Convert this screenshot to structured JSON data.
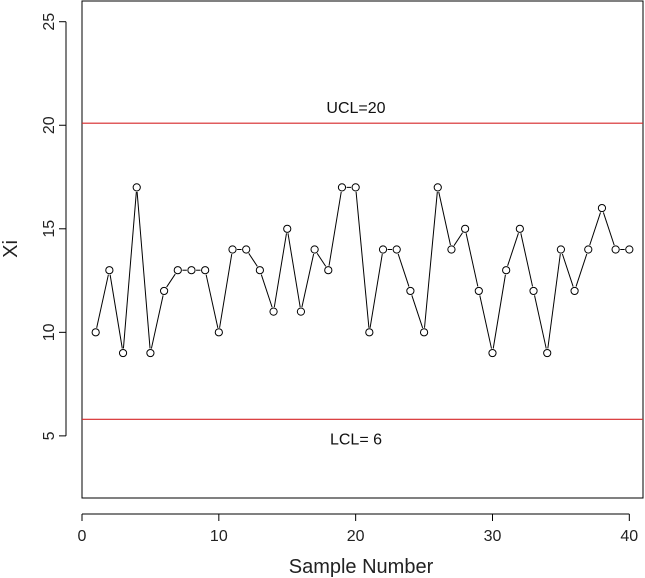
{
  "chart_data": {
    "type": "line",
    "title": "",
    "xlabel": "Sample Number",
    "ylabel": "Xi",
    "xlim": [
      0,
      41
    ],
    "ylim": [
      2,
      26
    ],
    "x_ticks": [
      0,
      10,
      20,
      30,
      40
    ],
    "y_ticks": [
      5,
      10,
      15,
      20,
      25
    ],
    "grid": false,
    "series": [
      {
        "x": [
          1,
          2,
          3,
          4,
          5,
          6,
          7,
          8,
          9,
          10,
          11,
          12,
          13,
          14,
          15,
          16,
          17,
          18,
          19,
          20,
          21,
          22,
          23,
          24,
          25,
          26,
          27,
          28,
          29,
          30,
          31,
          32,
          33,
          34,
          35,
          36,
          37,
          38,
          39,
          40
        ],
        "values": [
          10,
          13,
          9,
          17,
          9,
          12,
          13,
          13,
          13,
          10,
          14,
          14,
          13,
          11,
          15,
          11,
          14,
          13,
          17,
          17,
          10,
          14,
          14,
          12,
          10,
          17,
          14,
          15,
          12,
          9,
          13,
          15,
          12,
          9,
          14,
          12,
          14,
          16,
          14,
          14
        ]
      }
    ],
    "control_limits": [
      {
        "label": "UCL=20",
        "value": 20.1,
        "color": "#d62728"
      },
      {
        "label": "LCL= 6",
        "value": 5.8,
        "color": "#d62728"
      }
    ],
    "colors": {
      "line": "#000000",
      "point_fill": "#ffffff",
      "limit": "#d62728"
    }
  }
}
